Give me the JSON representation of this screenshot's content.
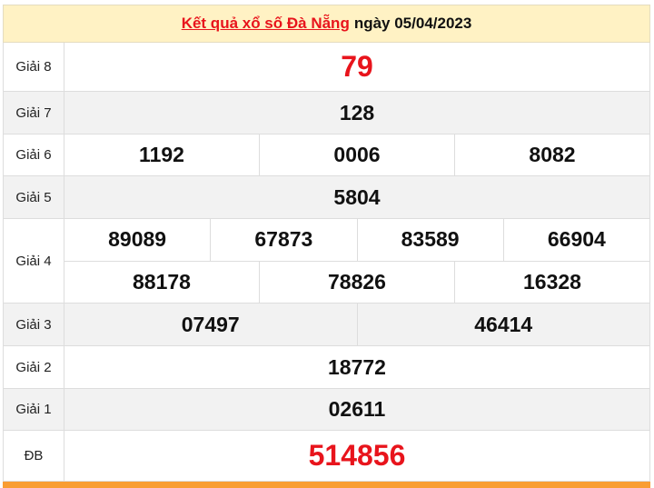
{
  "header": {
    "title_link": "Kết quả xổ số Đà Nẵng",
    "date_text": "ngày 05/04/2023"
  },
  "colors": {
    "accent_red": "#e8141c",
    "header_bg": "#fff2c4",
    "footer_bar": "#f99d33"
  },
  "prizes": [
    {
      "label": "Giải 8",
      "lines": [
        [
          "79"
        ]
      ],
      "highlight": true
    },
    {
      "label": "Giải 7",
      "lines": [
        [
          "128"
        ]
      ]
    },
    {
      "label": "Giải 6",
      "lines": [
        [
          "1192",
          "0006",
          "8082"
        ]
      ]
    },
    {
      "label": "Giải 5",
      "lines": [
        [
          "5804"
        ]
      ]
    },
    {
      "label": "Giải 4",
      "lines": [
        [
          "89089",
          "67873",
          "83589",
          "66904"
        ],
        [
          "88178",
          "78826",
          "16328"
        ]
      ]
    },
    {
      "label": "Giải 3",
      "lines": [
        [
          "07497",
          "46414"
        ]
      ]
    },
    {
      "label": "Giải 2",
      "lines": [
        [
          "18772"
        ]
      ]
    },
    {
      "label": "Giải 1",
      "lines": [
        [
          "02611"
        ]
      ]
    },
    {
      "label": "ĐB",
      "lines": [
        [
          "514856"
        ]
      ],
      "highlight": true
    }
  ]
}
